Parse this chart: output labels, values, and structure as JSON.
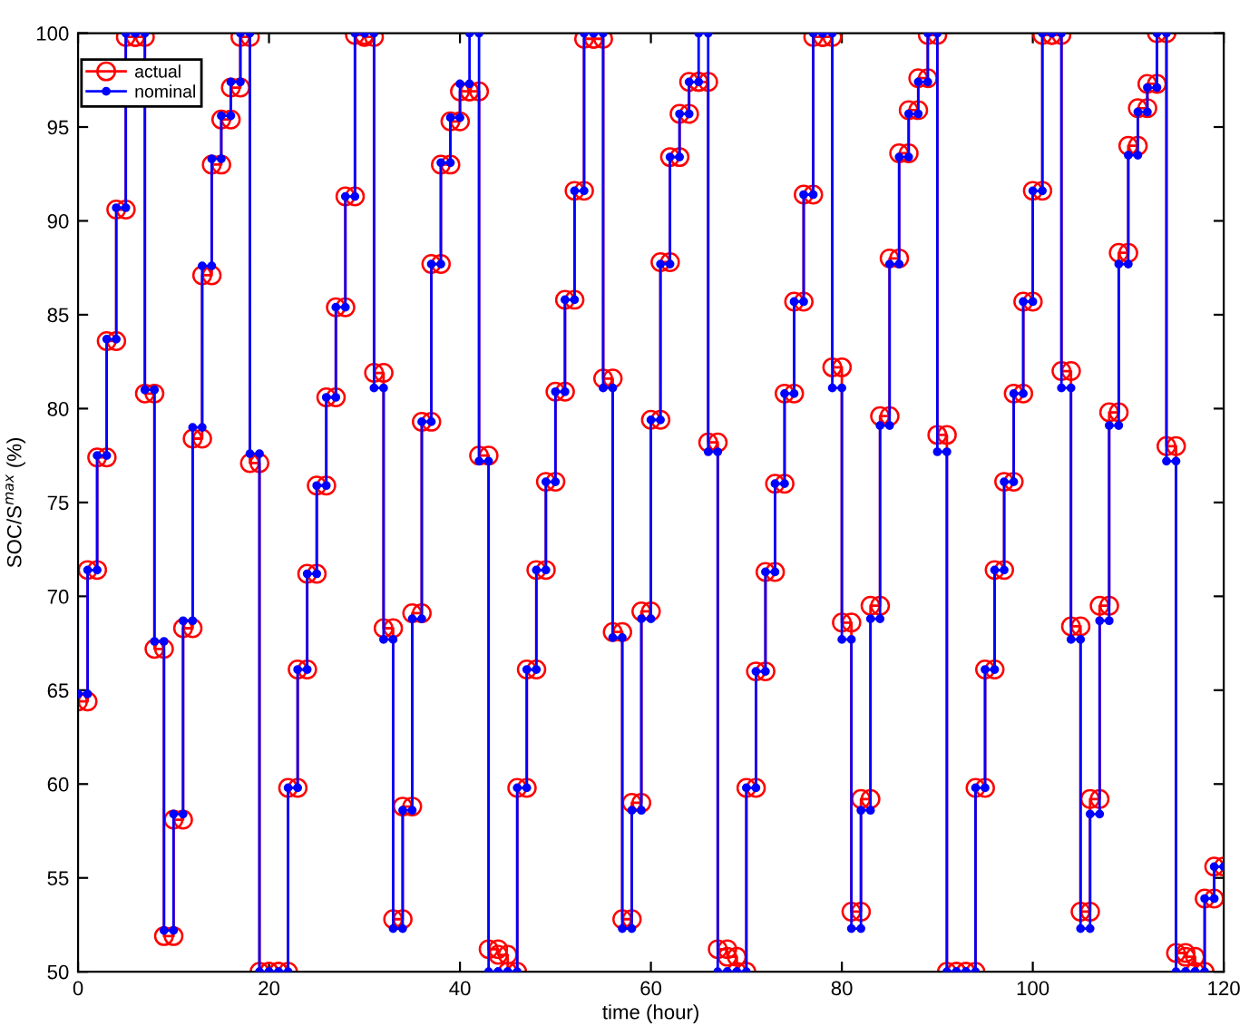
{
  "chart_data": {
    "type": "line",
    "xlabel": "time (hour)",
    "ylabel": "SOC/S$^{max}$ (%)",
    "x": [
      0,
      1,
      1,
      2,
      2,
      3,
      3,
      4,
      4,
      5,
      5,
      6,
      6,
      7,
      7,
      8,
      8,
      9,
      9,
      10,
      10,
      11,
      11,
      12,
      12,
      13,
      13,
      14,
      14,
      15,
      15,
      16,
      16,
      17,
      17,
      18,
      18,
      19,
      19,
      20,
      20,
      21,
      21,
      22,
      22,
      23,
      23,
      24,
      24,
      25,
      25,
      26,
      26,
      27,
      27,
      28,
      28,
      29,
      29,
      30,
      30,
      31,
      31,
      32,
      32,
      33,
      33,
      34,
      34,
      35,
      35,
      36,
      36,
      37,
      37,
      38,
      38,
      39,
      39,
      40,
      40,
      41,
      41,
      42,
      42,
      43,
      43,
      44,
      44,
      45,
      45,
      46,
      46,
      47,
      47,
      48,
      48,
      49,
      49,
      50,
      50,
      51,
      51,
      52,
      52,
      53,
      53,
      54,
      54,
      55,
      55,
      56,
      56,
      57,
      57,
      58,
      58,
      59,
      59,
      60,
      60,
      61,
      61,
      62,
      62,
      63,
      63,
      64,
      64,
      65,
      65,
      66,
      66,
      67,
      67,
      68,
      68,
      69,
      69,
      70,
      70,
      71,
      71,
      72,
      72,
      73,
      73,
      74,
      74,
      75,
      75,
      76,
      76,
      77,
      77,
      78,
      78,
      79,
      79,
      80,
      80,
      81,
      81,
      82,
      82,
      83,
      83,
      84,
      84,
      85,
      85,
      86,
      86,
      87,
      87,
      88,
      88,
      89,
      89,
      90,
      90,
      91,
      91,
      92,
      92,
      93,
      93,
      94,
      94,
      95,
      95,
      96,
      96,
      97,
      97,
      98,
      98,
      99,
      99,
      100,
      100,
      101,
      101,
      102,
      102,
      103,
      103,
      104,
      104,
      105,
      105,
      106,
      106,
      107,
      107,
      108,
      108,
      109,
      109,
      110,
      110,
      111,
      111,
      112,
      112,
      113,
      113,
      114,
      114,
      115,
      115,
      116,
      116,
      117,
      117,
      118,
      118,
      119,
      119,
      120
    ],
    "series": [
      {
        "name": "actual",
        "color": "#ff0000",
        "marker": "circle",
        "values": [
          64.4,
          64.4,
          71.4,
          71.4,
          77.4,
          77.4,
          83.6,
          83.6,
          90.6,
          90.6,
          99.8,
          99.8,
          99.8,
          99.8,
          80.8,
          80.8,
          67.2,
          67.2,
          51.9,
          51.9,
          58.1,
          58.1,
          68.3,
          68.3,
          78.4,
          78.4,
          87.1,
          87.1,
          93.0,
          93.0,
          95.4,
          95.4,
          97.1,
          97.1,
          99.8,
          99.8,
          77.1,
          77.1,
          50,
          50,
          50,
          50,
          50,
          50,
          59.8,
          59.8,
          66.1,
          66.1,
          71.2,
          71.2,
          75.9,
          75.9,
          80.6,
          80.6,
          85.4,
          85.4,
          91.3,
          91.3,
          99.9,
          99.9,
          99.8,
          99.8,
          81.9,
          81.9,
          68.3,
          68.3,
          52.8,
          52.8,
          58.8,
          58.8,
          69.1,
          69.1,
          79.3,
          79.3,
          87.7,
          87.7,
          93.0,
          93.0,
          95.3,
          95.3,
          96.9,
          96.9,
          96.9,
          96.9,
          77.5,
          77.5,
          51.2,
          51.2,
          50.9,
          50.9,
          50.0,
          50.0,
          59.8,
          59.8,
          66.1,
          66.1,
          71.4,
          71.4,
          76.1,
          76.1,
          80.9,
          80.9,
          85.8,
          85.8,
          91.6,
          91.6,
          99.7,
          99.7,
          99.7,
          99.7,
          81.6,
          81.6,
          68.1,
          68.1,
          52.8,
          52.8,
          59.0,
          59.0,
          69.2,
          69.2,
          79.4,
          79.4,
          87.8,
          87.8,
          93.4,
          93.4,
          95.7,
          95.7,
          97.4,
          97.4,
          97.4,
          97.4,
          78.2,
          78.2,
          51.2,
          51.2,
          50.8,
          50.8,
          50.0,
          50.0,
          59.8,
          59.8,
          66.0,
          66.0,
          71.3,
          71.3,
          76.0,
          76.0,
          80.8,
          80.8,
          85.7,
          85.7,
          91.4,
          91.4,
          99.8,
          99.8,
          99.8,
          99.8,
          82.2,
          82.2,
          68.6,
          68.6,
          53.2,
          53.2,
          59.2,
          59.2,
          69.5,
          69.5,
          79.6,
          79.6,
          88.0,
          88.0,
          93.6,
          93.6,
          95.9,
          95.9,
          97.6,
          97.6,
          99.9,
          99.9,
          78.6,
          78.6,
          50,
          50,
          50,
          50,
          50,
          50,
          59.8,
          59.8,
          66.1,
          66.1,
          71.4,
          71.4,
          76.1,
          76.1,
          80.8,
          80.8,
          85.7,
          85.7,
          91.6,
          91.6,
          99.9,
          99.9,
          99.9,
          99.9,
          82.0,
          82.0,
          68.4,
          68.4,
          53.2,
          53.2,
          59.2,
          59.2,
          69.5,
          69.5,
          79.8,
          79.8,
          88.3,
          88.3,
          94.0,
          94.0,
          96.0,
          96.0,
          97.3,
          97.3,
          100,
          100,
          78.0,
          78.0,
          51.0,
          51.0,
          50.8,
          50.8,
          50.0,
          50.0,
          53.9,
          53.9,
          55.6,
          55.6
        ]
      },
      {
        "name": "nominal",
        "color": "#0000ff",
        "marker": "circle",
        "values": [
          64.8,
          64.8,
          71.4,
          71.4,
          77.5,
          77.5,
          83.7,
          83.7,
          90.7,
          90.7,
          100,
          100,
          100,
          100,
          81.0,
          81.0,
          67.6,
          67.6,
          52.2,
          52.2,
          58.4,
          58.4,
          68.7,
          68.7,
          79.0,
          79.0,
          87.6,
          87.6,
          93.3,
          93.3,
          95.6,
          95.6,
          97.4,
          97.4,
          100,
          100,
          77.6,
          77.6,
          50,
          50,
          50,
          50,
          50,
          50,
          59.8,
          59.8,
          66.1,
          66.1,
          71.2,
          71.2,
          75.9,
          75.9,
          80.6,
          80.6,
          85.4,
          85.4,
          91.3,
          91.3,
          100,
          100,
          100,
          100,
          81.1,
          81.1,
          67.7,
          67.7,
          52.3,
          52.3,
          58.6,
          58.6,
          68.8,
          68.8,
          79.3,
          79.3,
          87.7,
          87.7,
          93.1,
          93.1,
          95.5,
          95.5,
          97.3,
          97.3,
          100,
          100,
          77.2,
          77.2,
          50,
          50,
          50,
          50,
          50,
          50,
          59.8,
          59.8,
          66.1,
          66.1,
          71.4,
          71.4,
          76.1,
          76.1,
          80.9,
          80.9,
          85.8,
          85.8,
          91.6,
          91.6,
          100,
          100,
          100,
          100,
          81.1,
          81.1,
          67.8,
          67.8,
          52.3,
          52.3,
          58.6,
          58.6,
          68.8,
          68.8,
          79.4,
          79.4,
          87.7,
          87.7,
          93.4,
          93.4,
          95.7,
          95.7,
          97.4,
          97.4,
          100,
          100,
          77.7,
          77.7,
          50,
          50,
          50,
          50,
          50,
          50,
          59.8,
          59.8,
          66.0,
          66.0,
          71.3,
          71.3,
          76.0,
          76.0,
          80.8,
          80.8,
          85.7,
          85.7,
          91.4,
          91.4,
          100,
          100,
          100,
          100,
          81.1,
          81.1,
          67.7,
          67.7,
          52.3,
          52.3,
          58.6,
          58.6,
          68.8,
          68.8,
          79.1,
          79.1,
          87.7,
          87.7,
          93.4,
          93.4,
          95.7,
          95.7,
          97.4,
          97.4,
          100,
          100,
          77.7,
          77.7,
          50,
          50,
          50,
          50,
          50,
          50,
          59.8,
          59.8,
          66.1,
          66.1,
          71.4,
          71.4,
          76.1,
          76.1,
          80.8,
          80.8,
          85.7,
          85.7,
          91.6,
          91.6,
          100,
          100,
          100,
          100,
          81.1,
          81.1,
          67.7,
          67.7,
          52.3,
          52.3,
          58.4,
          58.4,
          68.7,
          68.7,
          79.1,
          79.1,
          87.7,
          87.7,
          93.5,
          93.5,
          95.8,
          95.8,
          97.1,
          97.1,
          100,
          100,
          77.2,
          77.2,
          50,
          50,
          50,
          50,
          50,
          50,
          53.9,
          53.9,
          55.6,
          55.6
        ]
      }
    ],
    "xlim": [
      0,
      120
    ],
    "xticks": [
      0,
      20,
      40,
      60,
      80,
      100,
      120
    ],
    "ylim": [
      50,
      100
    ],
    "yticks": [
      50,
      55,
      60,
      65,
      70,
      75,
      80,
      85,
      90,
      95,
      100
    ],
    "legend": "top left",
    "grid": false
  }
}
